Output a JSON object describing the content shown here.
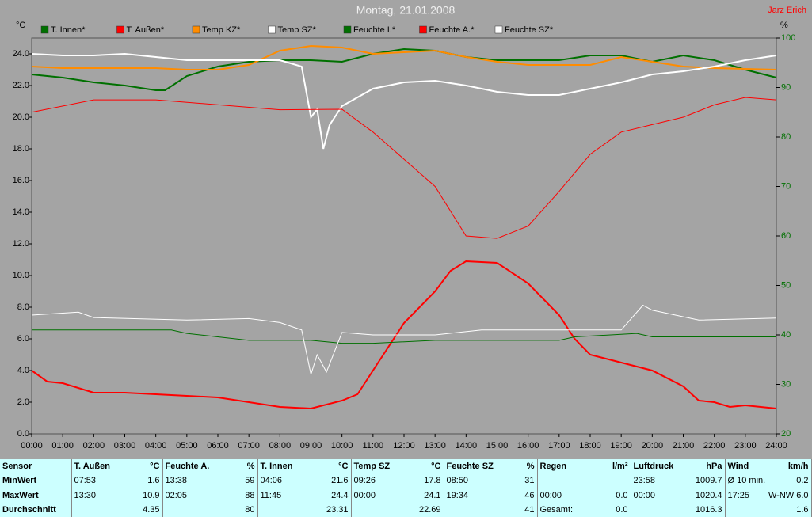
{
  "chart_data": {
    "type": "line",
    "title": "Montag, 21.01.2008",
    "author": "Jarz Erich",
    "y_label": "°C",
    "y2_label": "%",
    "xlim": [
      0,
      24
    ],
    "xticks": [
      {
        "value": 0,
        "label": "00:00"
      },
      {
        "value": 1,
        "label": "01:00"
      },
      {
        "value": 2,
        "label": "02:00"
      },
      {
        "value": 3,
        "label": "03:00"
      },
      {
        "value": 4,
        "label": "04:00"
      },
      {
        "value": 5,
        "label": "05:00"
      },
      {
        "value": 6,
        "label": "06:00"
      },
      {
        "value": 7,
        "label": "07:00"
      },
      {
        "value": 8,
        "label": "08:00"
      },
      {
        "value": 9,
        "label": "09:00"
      },
      {
        "value": 10,
        "label": "10:00"
      },
      {
        "value": 11,
        "label": "11:00"
      },
      {
        "value": 12,
        "label": "12:00"
      },
      {
        "value": 13,
        "label": "13:00"
      },
      {
        "value": 14,
        "label": "14:00"
      },
      {
        "value": 15,
        "label": "15:00"
      },
      {
        "value": 16,
        "label": "16:00"
      },
      {
        "value": 17,
        "label": "17:00"
      },
      {
        "value": 18,
        "label": "18:00"
      },
      {
        "value": 19,
        "label": "19:00"
      },
      {
        "value": 20,
        "label": "20:00"
      },
      {
        "value": 21,
        "label": "21:00"
      },
      {
        "value": 22,
        "label": "22:00"
      },
      {
        "value": 23,
        "label": "23:00"
      },
      {
        "value": 24,
        "label": "24:00"
      }
    ],
    "ylim": [
      0,
      25
    ],
    "yticks": [
      {
        "value": 0,
        "label": "0.0"
      },
      {
        "value": 2,
        "label": "2.0"
      },
      {
        "value": 4,
        "label": "4.0"
      },
      {
        "value": 6,
        "label": "6.0"
      },
      {
        "value": 8,
        "label": "8.0"
      },
      {
        "value": 10,
        "label": "10.0"
      },
      {
        "value": 12,
        "label": "12.0"
      },
      {
        "value": 14,
        "label": "14.0"
      },
      {
        "value": 16,
        "label": "16.0"
      },
      {
        "value": 18,
        "label": "18.0"
      },
      {
        "value": 20,
        "label": "20.0"
      },
      {
        "value": 22,
        "label": "22.0"
      },
      {
        "value": 24,
        "label": "24.0"
      }
    ],
    "y2lim": [
      20,
      100
    ],
    "y2ticks": [
      20,
      30,
      40,
      50,
      60,
      70,
      80,
      90,
      100
    ],
    "series": [
      {
        "name": "T. Innen*",
        "color": "#007000",
        "x": [
          0,
          1,
          2,
          3,
          4,
          4.3,
          5,
          6,
          7,
          8,
          9,
          10,
          11,
          12,
          13,
          14,
          15,
          16,
          17,
          18,
          19,
          20,
          21,
          22,
          23,
          24
        ],
        "values": [
          22.7,
          22.5,
          22.2,
          22.0,
          21.7,
          21.7,
          22.6,
          23.2,
          23.5,
          23.6,
          23.6,
          23.5,
          24.0,
          24.3,
          24.2,
          23.8,
          23.6,
          23.6,
          23.6,
          23.9,
          23.9,
          23.5,
          23.9,
          23.6,
          23.0,
          22.5
        ]
      },
      {
        "name": "T. Außen*",
        "color": "#ff0000",
        "x": [
          0,
          0.5,
          1,
          2,
          3,
          4,
          5,
          6,
          7,
          8,
          9,
          10,
          10.5,
          11,
          12,
          13,
          13.5,
          14,
          15,
          16,
          17,
          17.5,
          18,
          19,
          20,
          21,
          21.5,
          22,
          22.5,
          23,
          24
        ],
        "values": [
          4.0,
          3.3,
          3.2,
          2.6,
          2.6,
          2.5,
          2.4,
          2.3,
          2.0,
          1.7,
          1.6,
          2.1,
          2.5,
          4.0,
          7.0,
          9.0,
          10.3,
          10.9,
          10.8,
          9.5,
          7.5,
          6.0,
          5.0,
          4.5,
          4.0,
          3.0,
          2.1,
          2.0,
          1.7,
          1.8,
          1.6
        ]
      },
      {
        "name": "Temp KZ*",
        "color": "#ff8c00",
        "x": [
          0,
          1,
          2,
          4,
          5,
          6,
          7,
          8,
          9,
          10,
          11,
          12,
          13,
          14,
          15,
          16,
          17,
          18,
          19,
          20,
          21,
          22,
          24
        ],
        "values": [
          23.2,
          23.1,
          23.1,
          23.1,
          23.0,
          23.0,
          23.3,
          24.2,
          24.5,
          24.4,
          24.0,
          24.1,
          24.2,
          23.8,
          23.5,
          23.3,
          23.3,
          23.3,
          23.8,
          23.5,
          23.2,
          23.1,
          23.0
        ]
      },
      {
        "name": "Temp SZ*",
        "color": "#ffffff",
        "x": [
          0,
          1,
          2,
          3,
          4,
          5,
          6,
          7,
          8,
          8.7,
          9,
          9.2,
          9.4,
          9.6,
          10,
          11,
          12,
          13,
          14,
          15,
          16,
          17,
          18,
          19,
          20,
          21,
          22,
          23,
          24
        ],
        "values": [
          24.0,
          23.9,
          23.9,
          24.0,
          23.8,
          23.6,
          23.6,
          23.6,
          23.6,
          23.2,
          20.0,
          20.5,
          18.0,
          19.5,
          20.7,
          21.8,
          22.2,
          22.3,
          22.0,
          21.6,
          21.4,
          21.4,
          21.8,
          22.2,
          22.7,
          22.9,
          23.2,
          23.6,
          23.9
        ]
      },
      {
        "name": "Feuchte I.*",
        "color": "#007000",
        "axis": "y2",
        "x": [
          0,
          4.5,
          5,
          6,
          7,
          9,
          10,
          11,
          13,
          17,
          17.5,
          19.5,
          20,
          24
        ],
        "values": [
          41,
          41,
          40.3,
          39.6,
          38.9,
          38.9,
          38.3,
          38.3,
          38.9,
          38.9,
          39.6,
          40.3,
          39.6,
          39.6
        ]
      },
      {
        "name": "Feuchte A.*",
        "color": "#ff0000",
        "axis": "y2",
        "x": [
          0,
          2,
          4,
          8,
          10,
          11,
          12,
          13,
          14,
          15,
          16,
          17,
          18,
          19,
          20,
          21,
          22,
          23,
          24
        ],
        "values": [
          85,
          87.5,
          87.5,
          85.5,
          85.6,
          81,
          75.5,
          70,
          60,
          59.5,
          62,
          69,
          76.5,
          81,
          82.5,
          84,
          86.5,
          88,
          87.5
        ]
      },
      {
        "name": "Feuchte SZ*",
        "color": "#ffffff",
        "axis": "y2",
        "x": [
          0,
          1.5,
          2,
          5,
          7,
          8,
          8.7,
          9,
          9.2,
          9.5,
          10,
          11,
          13,
          14.5,
          17,
          19,
          19.7,
          20,
          21.5,
          24
        ],
        "values": [
          44,
          44.6,
          43.5,
          43,
          43.3,
          42.5,
          41,
          32,
          36,
          32.5,
          40.5,
          40,
          40,
          41,
          41,
          41,
          46,
          45,
          43,
          43.4
        ]
      }
    ]
  },
  "table": {
    "header": [
      "Sensor",
      "T. Außen",
      "°C",
      "Feuchte A.",
      "%",
      "T. Innen",
      "°C",
      "Temp SZ",
      "°C",
      "Feuchte SZ",
      "%",
      "Regen",
      "l/m²",
      "Luftdruck",
      "hPa",
      "Wind",
      "km/h"
    ],
    "rows": [
      [
        "MinWert",
        "07:53",
        "1.6",
        "13:38",
        "59",
        "04:06",
        "21.6",
        "09:26",
        "17.8",
        "08:50",
        "31",
        null,
        null,
        "23:58",
        "1009.7",
        "Ø 10 min.",
        "0.2"
      ],
      [
        "MaxWert",
        "13:30",
        "10.9",
        "02:05",
        "88",
        "11:45",
        "24.4",
        "00:00",
        "24.1",
        "19:34",
        "46",
        "00:00",
        "0.0",
        "00:00",
        "1020.4",
        "17:25",
        "W-NW 6.0"
      ],
      [
        "Durchschnitt",
        null,
        "4.35",
        null,
        "80",
        null,
        "23.31",
        null,
        "22.69",
        null,
        "41",
        "Gesamt:",
        "0.0",
        null,
        "1016.3",
        null,
        "1.6"
      ]
    ]
  }
}
